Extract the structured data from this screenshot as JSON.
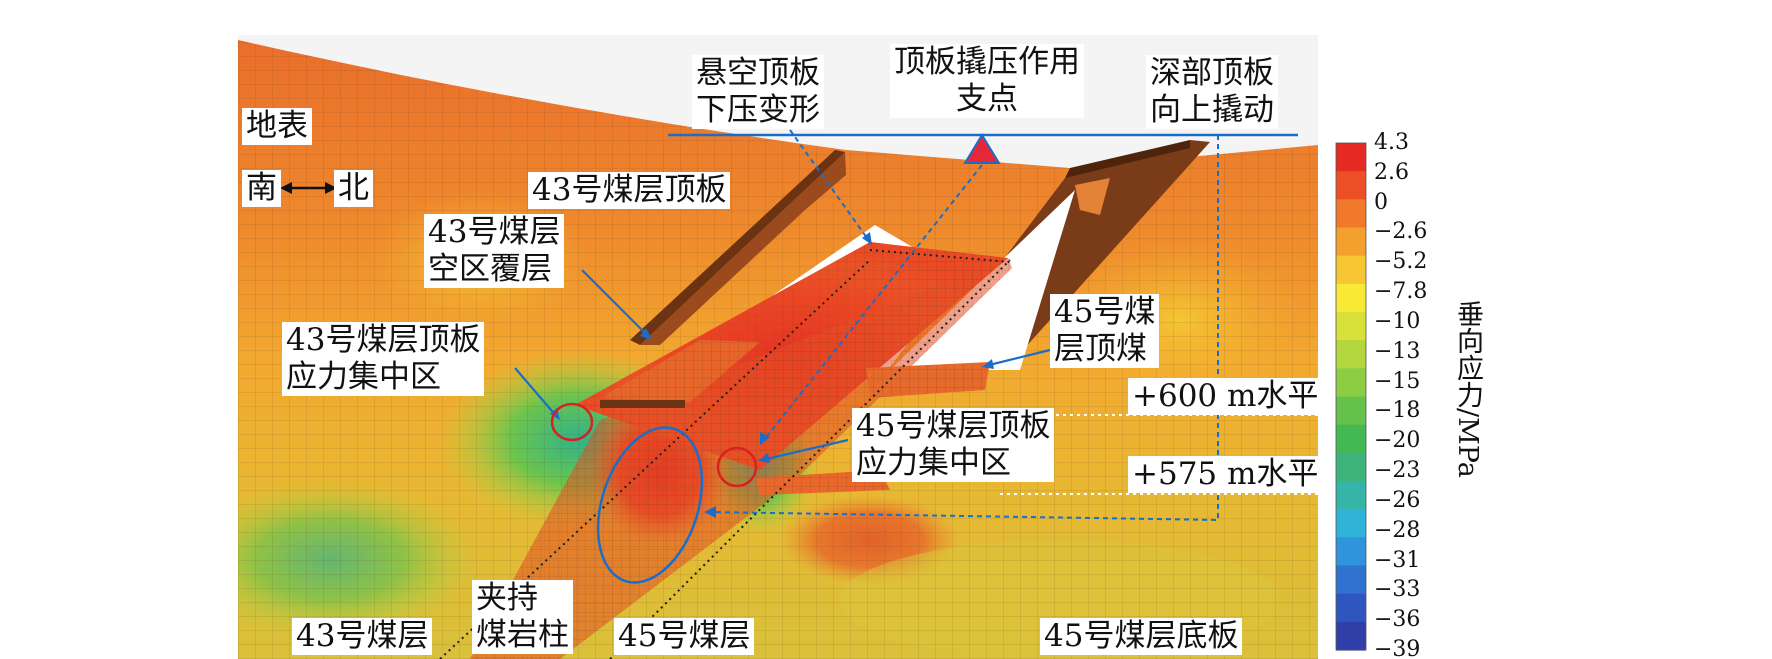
{
  "labels": {
    "surface": "地表",
    "direction_south": "南",
    "direction_north": "北",
    "roof43": "43号煤层顶板",
    "overburden43_line1": "43号煤层",
    "overburden43_line2": "空区覆层",
    "stress43_line1": "43号煤层顶板",
    "stress43_line2": "应力集中区",
    "hanging_line1": "悬空顶板",
    "hanging_line2": "下压变形",
    "pivot_line1": "顶板撬压作用",
    "pivot_line2": "支点",
    "deep_line1": "深部顶板",
    "deep_line2": "向上撬动",
    "top_coal45_line1": "45号煤",
    "top_coal45_line2": "层顶煤",
    "level600": "+600 m水平",
    "level575": "+575 m水平",
    "stress45_line1": "45号煤层顶板",
    "stress45_line2": "应力集中区",
    "pillar_line1": "夹持",
    "pillar_line2": "煤岩柱",
    "seam43": "43号煤层",
    "seam45": "45号煤层",
    "floor45": "45号煤层底板"
  },
  "colorbar": {
    "title": "垂向应力/MPa",
    "ticks": [
      "4.3",
      "2.6",
      "0",
      "−2.6",
      "−5.2",
      "−7.8",
      "−10",
      "−13",
      "−15",
      "−18",
      "−20",
      "−23",
      "−26",
      "−28",
      "−31",
      "−33",
      "−36",
      "−39"
    ],
    "colors": [
      "#e52a24",
      "#ec4f26",
      "#f07a2a",
      "#f3a02f",
      "#f6c733",
      "#f7e935",
      "#d8e03a",
      "#b2d63e",
      "#8ccd44",
      "#66c24a",
      "#44b953",
      "#3bb37a",
      "#35b4a8",
      "#2fb3d6",
      "#2f94dc",
      "#2f72cf",
      "#2f55bf",
      "#303fa8"
    ]
  },
  "palette": {
    "accent_blue": "#1a6dc9",
    "stress_red": "#e02a26",
    "roof_orange": "#e56a2c",
    "dark_roof": "#7a3b18",
    "pivot_fill": "#e4283a"
  }
}
